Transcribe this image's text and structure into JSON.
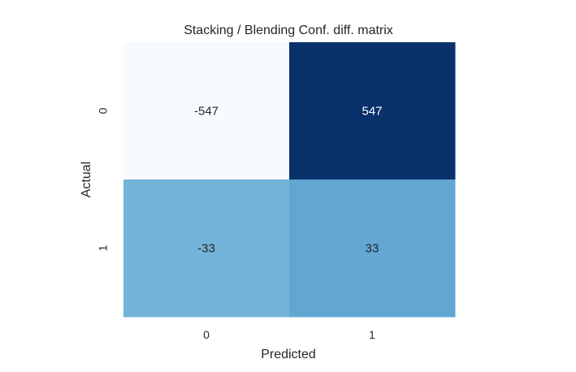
{
  "chart_data": {
    "type": "heatmap",
    "title": "Stacking / Blending Conf. diff. matrix",
    "xlabel": "Predicted",
    "ylabel": "Actual",
    "x_categories": [
      "0",
      "1"
    ],
    "y_categories": [
      "0",
      "1"
    ],
    "values": [
      [
        -547,
        547
      ],
      [
        -33,
        33
      ]
    ],
    "colormap": "Blues",
    "vmin": -547,
    "vmax": 547,
    "colorbar": false,
    "annotations": true,
    "colors": {
      "cells": [
        [
          "#f7fbff",
          "#08306b"
        ],
        [
          "#73b3d8",
          "#61a7d2"
        ]
      ],
      "dark_text": "#262626",
      "light_text": "#ffffff"
    }
  }
}
